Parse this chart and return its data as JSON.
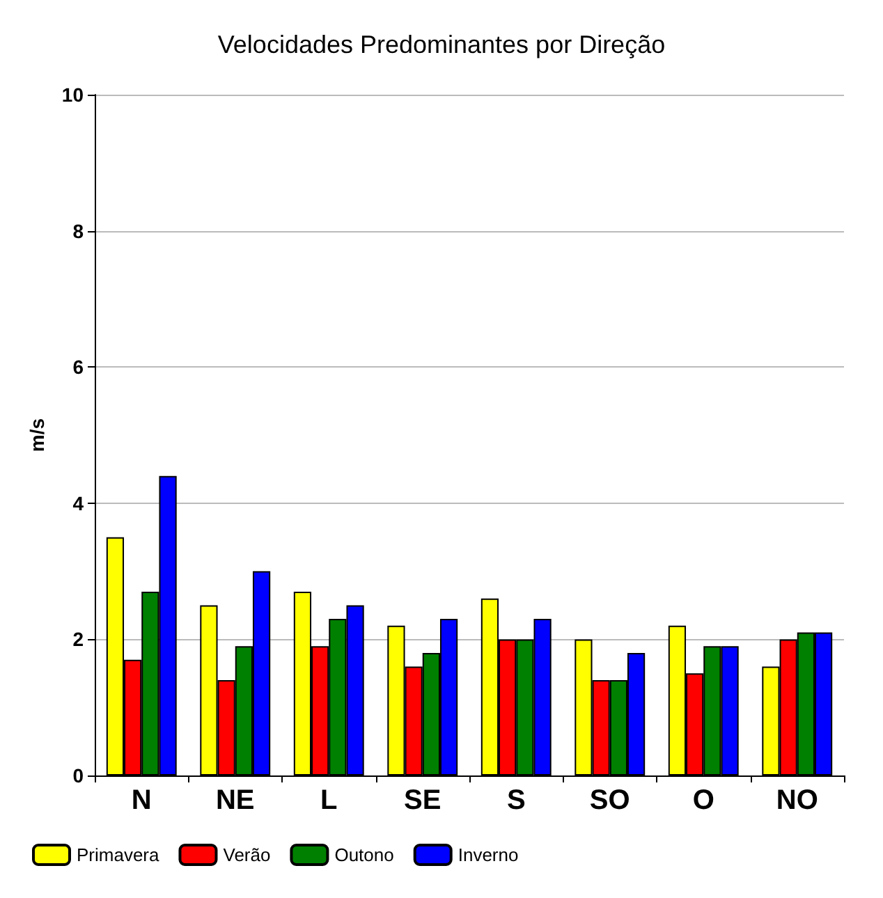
{
  "chart_data": {
    "type": "bar",
    "title": "Velocidades Predominantes por Direção",
    "ylabel": "m/s",
    "categories": [
      "N",
      "NE",
      "L",
      "SE",
      "S",
      "SO",
      "O",
      "NO"
    ],
    "series": [
      {
        "name": "Primavera",
        "color": "#ffff00",
        "values": [
          3.5,
          2.5,
          2.7,
          2.2,
          2.6,
          2.0,
          2.2,
          1.6
        ]
      },
      {
        "name": "Verão",
        "color": "#ff0000",
        "values": [
          1.7,
          1.4,
          1.9,
          1.6,
          2.0,
          1.4,
          1.5,
          2.0
        ]
      },
      {
        "name": "Outono",
        "color": "#008000",
        "values": [
          2.7,
          1.9,
          2.3,
          1.8,
          2.0,
          1.4,
          1.9,
          2.1
        ]
      },
      {
        "name": "Inverno",
        "color": "#0000ff",
        "values": [
          4.4,
          3.0,
          2.5,
          2.3,
          2.3,
          1.8,
          1.9,
          2.1
        ]
      }
    ],
    "ylim": [
      0,
      10
    ],
    "yticks": [
      0,
      2,
      4,
      6,
      8,
      10
    ],
    "grid": "y",
    "legend": "bottom left"
  }
}
